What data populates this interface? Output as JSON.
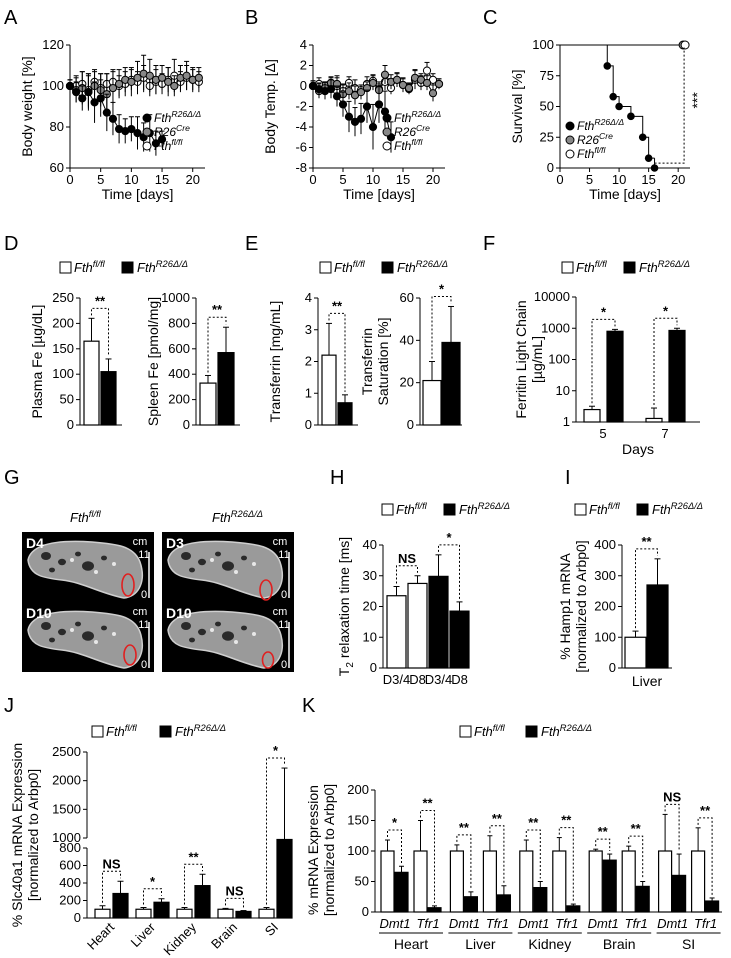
{
  "panels": {
    "A": "A",
    "B": "B",
    "C": "C",
    "D": "D",
    "E": "E",
    "F": "F",
    "G": "G",
    "H": "H",
    "I": "I",
    "J": "J",
    "K": "K"
  },
  "genotypes": {
    "flfl": "Fth",
    "flfl_sup": "fl/fl",
    "del": "Fth",
    "del_sup": "R26Δ/Δ",
    "cre": "R26",
    "cre_sup": "Cre"
  },
  "colors": {
    "flfl": "#ffffff",
    "del": "#000000",
    "cre": "#888888"
  },
  "mri": {
    "col_flfl": "Fth",
    "col_flfl_sup": "fl/fl",
    "col_del": "Fth",
    "col_del_sup": "R26Δ/Δ",
    "scale_unit": "cm",
    "scale_top": "11",
    "scale_bottom": "0",
    "day_tl": "D4",
    "day_tr": "D3",
    "day_bl": "D10",
    "day_br": "D10",
    "roi_color": "#e02020"
  },
  "chart_data": [
    {
      "id": "A",
      "type": "line",
      "xlabel": "Time [days]",
      "ylabel": "Body weight [%]",
      "ylim": [
        60,
        120
      ],
      "yticks": [
        "60",
        "80",
        "100",
        "120"
      ],
      "xlim": [
        0,
        22
      ],
      "xticks": [
        "0",
        "5",
        "10",
        "15",
        "20"
      ],
      "legend": "bottom-right",
      "series": [
        {
          "key": "flfl",
          "x": [
            0,
            1,
            2,
            3,
            4,
            5,
            6,
            7,
            8,
            9,
            10,
            11,
            12,
            13,
            14,
            15,
            16,
            17,
            18,
            19,
            20,
            21
          ],
          "y": [
            100,
            100,
            101,
            98,
            102,
            99,
            101,
            102,
            100,
            101,
            103,
            102,
            104,
            100,
            102,
            101,
            103,
            105,
            102,
            104,
            103,
            102
          ],
          "err": [
            3,
            5,
            6,
            8,
            6,
            7,
            5,
            6,
            5,
            6,
            5,
            5,
            6,
            5,
            6,
            5,
            6,
            8,
            5,
            6,
            5,
            5
          ]
        },
        {
          "key": "cre",
          "x": [
            0,
            1,
            2,
            3,
            4,
            5,
            6,
            7,
            8,
            9,
            10,
            11,
            12,
            13,
            14,
            15,
            16,
            17,
            18,
            19,
            20,
            21
          ],
          "y": [
            100,
            98,
            99,
            97,
            100,
            98,
            96,
            99,
            101,
            103,
            102,
            104,
            106,
            105,
            103,
            104,
            102,
            100,
            104,
            105,
            103,
            104
          ],
          "err": [
            3,
            6,
            8,
            9,
            7,
            8,
            10,
            8,
            7,
            6,
            7,
            8,
            9,
            8,
            7,
            6,
            7,
            5,
            6,
            7,
            6,
            5
          ]
        },
        {
          "key": "del",
          "x": [
            0,
            1,
            2,
            3,
            4,
            5,
            6,
            7,
            8,
            9,
            10,
            11,
            12,
            13,
            14,
            15
          ],
          "y": [
            100,
            97,
            94,
            97,
            92,
            94,
            87,
            84,
            79,
            78,
            79,
            77,
            75,
            77,
            72,
            74
          ],
          "err": [
            3,
            5,
            6,
            8,
            10,
            9,
            9,
            8,
            7,
            6,
            6,
            8,
            7,
            9,
            6,
            4
          ]
        }
      ]
    },
    {
      "id": "B",
      "type": "line",
      "xlabel": "Time [days]",
      "ylabel": "Body Temp. [Δ]",
      "ylim": [
        -8,
        4
      ],
      "yticks": [
        "-8",
        "-6",
        "-4",
        "-2",
        "0",
        "2",
        "4"
      ],
      "xlim": [
        0,
        22
      ],
      "xticks": [
        "0",
        "5",
        "10",
        "15",
        "20"
      ],
      "legend": "bottom-right",
      "series": [
        {
          "key": "flfl",
          "x": [
            0,
            1,
            2,
            3,
            4,
            5,
            6,
            7,
            8,
            9,
            10,
            11,
            12,
            13,
            14,
            15,
            16,
            17,
            18,
            19,
            20,
            21
          ],
          "y": [
            0,
            0.2,
            -0.3,
            0.3,
            0,
            -0.5,
            0.3,
            -0.2,
            -0.4,
            0.2,
            0.5,
            -0.3,
            0.4,
            -0.2,
            0.6,
            0.1,
            -0.3,
            0.6,
            0.3,
            1.5,
            0.6,
            0.2
          ],
          "err": [
            0.5,
            0.6,
            0.7,
            0.5,
            0.8,
            0.7,
            0.6,
            0.8,
            0.5,
            0.7,
            0.6,
            0.5,
            0.8,
            0.6,
            0.7,
            0.6,
            0.5,
            0.9,
            0.7,
            0.8,
            0.6,
            0.5
          ]
        },
        {
          "key": "cre",
          "x": [
            0,
            1,
            2,
            3,
            4,
            5,
            6,
            7,
            8,
            9,
            10,
            11,
            12,
            13,
            14,
            15,
            16,
            17,
            18,
            19,
            20,
            21
          ],
          "y": [
            0,
            -0.5,
            -0.2,
            0.3,
            0.2,
            -0.8,
            -0.5,
            -0.9,
            -0.6,
            -0.2,
            0.3,
            -0.4,
            1.1,
            0.4,
            0.6,
            0.1,
            -0.2,
            0.8,
            0.6,
            0.3,
            -0.7,
            0.2
          ],
          "err": [
            0.5,
            0.7,
            0.6,
            0.6,
            0.8,
            0.9,
            0.8,
            0.9,
            0.7,
            0.6,
            0.7,
            0.8,
            0.9,
            0.7,
            0.6,
            0.7,
            0.5,
            0.8,
            0.6,
            0.7,
            0.8,
            0.5
          ]
        },
        {
          "key": "del",
          "x": [
            0,
            1,
            2,
            3,
            4,
            5,
            6,
            7,
            8,
            9,
            10,
            11,
            12,
            13
          ],
          "y": [
            0,
            -0.3,
            -0.5,
            -0.3,
            -1.0,
            -1.8,
            -3.0,
            -3.5,
            -3.2,
            -2.0,
            -4.0,
            -1.8,
            -2.5,
            -5.0
          ],
          "err": [
            0.5,
            0.6,
            0.8,
            0.9,
            1.0,
            1.2,
            1.5,
            1.4,
            1.5,
            1.6,
            2.2,
            1.8,
            2.0,
            1.5
          ]
        }
      ]
    },
    {
      "id": "C",
      "type": "line",
      "subtype": "survival",
      "xlabel": "Time [days]",
      "ylabel": "Survival [%]",
      "ylim": [
        0,
        100
      ],
      "yticks": [
        "0",
        "25",
        "50",
        "75",
        "100"
      ],
      "xlim": [
        0,
        22
      ],
      "xticks": [
        "0",
        "5",
        "10",
        "15",
        "20"
      ],
      "legend": "bottom-left",
      "sig": "***",
      "series": [
        {
          "key": "flfl",
          "x": [
            0,
            21
          ],
          "y": [
            100,
            100
          ]
        },
        {
          "key": "cre",
          "x": [
            0,
            21
          ],
          "y": [
            100,
            100
          ]
        },
        {
          "key": "del",
          "x": [
            0,
            8,
            8,
            9,
            9,
            10,
            10,
            12,
            12,
            14,
            14,
            15,
            15,
            16
          ],
          "y": [
            100,
            100,
            83,
            83,
            58,
            58,
            50,
            50,
            42,
            42,
            25,
            25,
            8,
            8
          ],
          "pts": [
            [
              8,
              83
            ],
            [
              9,
              58
            ],
            [
              10,
              50
            ],
            [
              12,
              42
            ],
            [
              14,
              25
            ],
            [
              15,
              8
            ],
            [
              16,
              0
            ]
          ]
        }
      ]
    },
    {
      "id": "D1",
      "type": "bar",
      "ylabel": "Plasma Fe [µg/dL]",
      "ylim": [
        0,
        250
      ],
      "yticks": [
        "0",
        "50",
        "100",
        "150",
        "200",
        "250"
      ],
      "categories": [
        "Fth fl/fl",
        "Fth R26Δ/Δ"
      ],
      "values": [
        165,
        105
      ],
      "err": [
        45,
        25
      ],
      "sig": "**"
    },
    {
      "id": "D2",
      "type": "bar",
      "ylabel": "Spleen Fe [pmol/mg]",
      "ylim": [
        0,
        1000
      ],
      "yticks": [
        "0",
        "200",
        "400",
        "600",
        "800",
        "1000"
      ],
      "categories": [
        "Fth fl/fl",
        "Fth R26Δ/Δ"
      ],
      "values": [
        330,
        570
      ],
      "err": [
        60,
        200
      ],
      "sig": "**"
    },
    {
      "id": "E1",
      "type": "bar",
      "ylabel": "Transferrin [mg/mL]",
      "ylim": [
        0,
        4
      ],
      "yticks": [
        "0",
        "1",
        "2",
        "3",
        "4"
      ],
      "categories": [
        "Fth fl/fl",
        "Fth R26Δ/Δ"
      ],
      "values": [
        2.2,
        0.7
      ],
      "err": [
        1.0,
        0.25
      ],
      "sig": "**"
    },
    {
      "id": "E2",
      "type": "bar",
      "ylabel": "Transferrin Saturation [%]",
      "ylim": [
        0,
        60
      ],
      "yticks": [
        "0",
        "20",
        "40",
        "60"
      ],
      "categories": [
        "Fth fl/fl",
        "Fth R26Δ/Δ"
      ],
      "values": [
        21,
        39
      ],
      "err": [
        9,
        17
      ],
      "sig": "*"
    },
    {
      "id": "F",
      "type": "bar",
      "scale": "log",
      "ylabel": "Ferritin Light Chain [µg/mL]",
      "xlabel": "Days",
      "ylim": [
        1,
        10000
      ],
      "yticks": [
        "1",
        "10",
        "100",
        "1000",
        "10000"
      ],
      "categories": [
        "5",
        "7"
      ],
      "series": [
        {
          "key": "flfl",
          "values": [
            2.5,
            1.3
          ],
          "err": [
            0.7,
            1.5
          ]
        },
        {
          "key": "del",
          "values": [
            800,
            850
          ],
          "err": [
            120,
            150
          ]
        }
      ],
      "sig": [
        "*",
        "*"
      ]
    },
    {
      "id": "H",
      "type": "bar",
      "ylabel": "relaxation time [ms]",
      "ylabel_prefix": "T",
      "ylabel_sub": "2",
      "ylim": [
        0,
        40
      ],
      "yticks": [
        "0",
        "10",
        "20",
        "30",
        "40"
      ],
      "categories": [
        "D3/4",
        "D8",
        "D3/4",
        "D8"
      ],
      "values": [
        23.5,
        27.5,
        29.8,
        18.5
      ],
      "err": [
        3,
        2.5,
        7,
        3
      ],
      "keys": [
        "flfl",
        "flfl",
        "del",
        "del"
      ],
      "sig": [
        "NS",
        "*"
      ]
    },
    {
      "id": "I",
      "type": "bar",
      "ylabel": "% Hamp1 mRNA",
      "ylabel2": "[normalized to Arbp0]",
      "xlabel": "Liver",
      "ylim": [
        0,
        400
      ],
      "yticks": [
        "0",
        "100",
        "200",
        "300",
        "400"
      ],
      "categories": [
        "Fth fl/fl",
        "Fth R26Δ/Δ"
      ],
      "values": [
        100,
        270
      ],
      "err": [
        20,
        85
      ],
      "sig": "**"
    },
    {
      "id": "J",
      "type": "bar",
      "scale": "broken",
      "ylabel": "% Slc40a1 mRNA Expression",
      "ylabel2": "[normalized to Arbp0]",
      "yticks_low": [
        "0",
        "200",
        "400",
        "600",
        "800"
      ],
      "yticks_high": [
        "1000",
        "1500",
        "2000",
        "2500"
      ],
      "categories": [
        "Heart",
        "Liver",
        "Kidney",
        "Brain",
        "SI"
      ],
      "series": [
        {
          "key": "flfl",
          "values": [
            100,
            100,
            100,
            100,
            100
          ],
          "err": [
            40,
            20,
            20,
            10,
            20
          ]
        },
        {
          "key": "del",
          "values": [
            280,
            180,
            370,
            75,
            970
          ],
          "err": [
            140,
            40,
            130,
            10,
            1250
          ]
        }
      ],
      "sig": [
        "NS",
        "*",
        "**",
        "NS",
        "*"
      ]
    },
    {
      "id": "K",
      "type": "bar",
      "ylabel": "% mRNA Expression",
      "ylabel2": "[normalized to Arbp0]",
      "ylim": [
        0,
        200
      ],
      "yticks": [
        "0",
        "50",
        "100",
        "150",
        "200"
      ],
      "groups": [
        "Heart",
        "Liver",
        "Kidney",
        "Brain",
        "SI"
      ],
      "subcats": [
        "Dmt1",
        "Tfr1"
      ],
      "series": [
        {
          "key": "flfl",
          "values": [
            100,
            100,
            100,
            100,
            100,
            100,
            100,
            100,
            100,
            100
          ],
          "err": [
            18,
            50,
            10,
            25,
            18,
            22,
            3,
            8,
            60,
            38
          ]
        },
        {
          "key": "del",
          "values": [
            65,
            7,
            25,
            28,
            40,
            10,
            85,
            42,
            60,
            18
          ],
          "err": [
            10,
            3,
            8,
            15,
            10,
            3,
            10,
            8,
            35,
            5
          ]
        }
      ],
      "sig": [
        "*",
        "**",
        "**",
        "**",
        "**",
        "**",
        "**",
        "**",
        "NS",
        "**"
      ]
    }
  ]
}
